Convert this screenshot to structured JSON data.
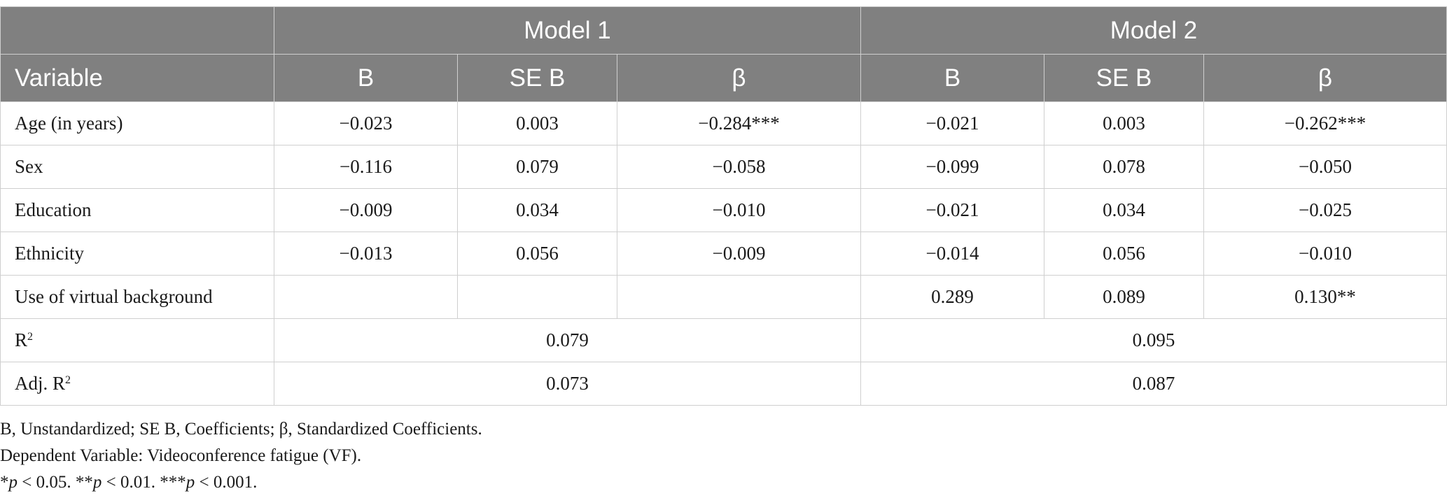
{
  "header": {
    "model1": "Model 1",
    "model2": "Model 2",
    "variable": "Variable",
    "cols": [
      "B",
      "SE B",
      "β",
      "B",
      "SE B",
      "β"
    ]
  },
  "rows": [
    {
      "label": "Age (in years)",
      "cells": [
        "−0.023",
        "0.003",
        "−0.284***",
        "−0.021",
        "0.003",
        "−0.262***"
      ]
    },
    {
      "label": "Sex",
      "cells": [
        "−0.116",
        "0.079",
        "−0.058",
        "−0.099",
        "0.078",
        "−0.050"
      ]
    },
    {
      "label": "Education",
      "cells": [
        "−0.009",
        "0.034",
        "−0.010",
        "−0.021",
        "0.034",
        "−0.025"
      ]
    },
    {
      "label": "Ethnicity",
      "cells": [
        "−0.013",
        "0.056",
        "−0.009",
        "−0.014",
        "0.056",
        "−0.010"
      ]
    },
    {
      "label": "Use of virtual background",
      "cells": [
        "",
        "",
        "",
        "0.289",
        "0.089",
        "0.130**"
      ]
    }
  ],
  "summary": {
    "r2": {
      "label": "R",
      "sup": "2",
      "model1": "0.079",
      "model2": "0.095"
    },
    "adj_r2": {
      "label": "Adj. R",
      "sup": "2",
      "model1": "0.073",
      "model2": "0.087"
    }
  },
  "notes": {
    "line1": "B, Unstandardized; SE B, Coefficients; β, Standardized Coefficients.",
    "line2": "Dependent Variable: Videoconference fatigue (VF).",
    "line3": {
      "p1_pre": "*",
      "p1_var": "p",
      "p1_post": " < 0.05. ",
      "p2_pre": "**",
      "p2_var": "p",
      "p2_post": " < 0.01. ",
      "p3_pre": "***",
      "p3_var": "p",
      "p3_post": " < 0.001."
    }
  }
}
